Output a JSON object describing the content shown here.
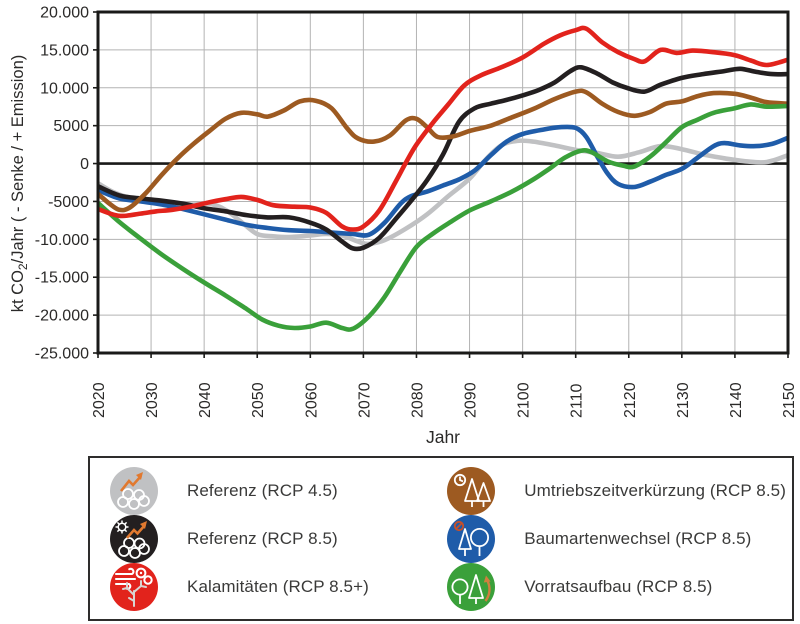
{
  "figure": {
    "xlabel": "Jahr"
  },
  "chart_data": {
    "type": "line",
    "title": "",
    "xlabel": "Jahr",
    "ylabel": "kt CO2/Jahr ( - Senke / + Emission)",
    "ylabel_parts": {
      "pre": "kt CO",
      "sub": "2",
      "post": "/Jahr ( - Senke / + Emission)"
    },
    "xlim": [
      2020,
      2150
    ],
    "ylim": [
      -25000,
      20000
    ],
    "grid": true,
    "legend_position": "bottom",
    "x_ticks": [
      2020,
      2030,
      2040,
      2050,
      2060,
      2070,
      2080,
      2090,
      2100,
      2110,
      2120,
      2130,
      2140,
      2150
    ],
    "y_ticks": [
      {
        "value": 20000,
        "label": "20.000"
      },
      {
        "value": 15000,
        "label": "15.000"
      },
      {
        "value": 10000,
        "label": "10.000"
      },
      {
        "value": 5000,
        "label": "5000"
      },
      {
        "value": 0,
        "label": "0"
      },
      {
        "value": -5000,
        "label": "-5000"
      },
      {
        "value": -10000,
        "label": "-10.000"
      },
      {
        "value": -15000,
        "label": "-15.000"
      },
      {
        "value": -20000,
        "label": "-20.000"
      },
      {
        "value": -25000,
        "label": "-25.000"
      }
    ],
    "zero_line_color": "#1a1a18",
    "grid_color": "#b3b3b3",
    "accent_orange": "#e1792f",
    "series": [
      {
        "name": "Referenz (RCP 4.5)",
        "color": "#c0c1c3",
        "icon": "logs-arrow-icon",
        "points": [
          [
            2020,
            -2600
          ],
          [
            2023,
            -3800
          ],
          [
            2026,
            -4500
          ],
          [
            2030,
            -4900
          ],
          [
            2034,
            -5200
          ],
          [
            2038,
            -5400
          ],
          [
            2041,
            -5300
          ],
          [
            2044,
            -6100
          ],
          [
            2047,
            -7700
          ],
          [
            2050,
            -9300
          ],
          [
            2053,
            -9600
          ],
          [
            2056,
            -9700
          ],
          [
            2060,
            -9500
          ],
          [
            2063,
            -9300
          ],
          [
            2066,
            -9500
          ],
          [
            2069,
            -10300
          ],
          [
            2071,
            -10600
          ],
          [
            2074,
            -10100
          ],
          [
            2078,
            -8600
          ],
          [
            2082,
            -6700
          ],
          [
            2086,
            -4300
          ],
          [
            2090,
            -2000
          ],
          [
            2093,
            500
          ],
          [
            2096,
            2400
          ],
          [
            2099,
            3000
          ],
          [
            2102,
            2900
          ],
          [
            2106,
            2400
          ],
          [
            2110,
            1800
          ],
          [
            2114,
            1400
          ],
          [
            2118,
            900
          ],
          [
            2122,
            1500
          ],
          [
            2126,
            2300
          ],
          [
            2130,
            1900
          ],
          [
            2134,
            1200
          ],
          [
            2138,
            700
          ],
          [
            2142,
            300
          ],
          [
            2146,
            200
          ],
          [
            2150,
            1100
          ]
        ]
      },
      {
        "name": "Referenz (RCP 8.5)",
        "color": "#231f20",
        "icon": "sun-logs-arrow-icon",
        "points": [
          [
            2020,
            -3000
          ],
          [
            2024,
            -4200
          ],
          [
            2028,
            -4600
          ],
          [
            2032,
            -4900
          ],
          [
            2036,
            -5300
          ],
          [
            2040,
            -5900
          ],
          [
            2044,
            -6300
          ],
          [
            2048,
            -6800
          ],
          [
            2052,
            -7100
          ],
          [
            2056,
            -7100
          ],
          [
            2060,
            -7800
          ],
          [
            2063,
            -8700
          ],
          [
            2066,
            -10300
          ],
          [
            2068,
            -11200
          ],
          [
            2070,
            -11100
          ],
          [
            2073,
            -9800
          ],
          [
            2076,
            -7400
          ],
          [
            2079,
            -4900
          ],
          [
            2082,
            -2200
          ],
          [
            2085,
            1200
          ],
          [
            2088,
            5500
          ],
          [
            2091,
            7300
          ],
          [
            2094,
            7900
          ],
          [
            2097,
            8400
          ],
          [
            2100,
            9000
          ],
          [
            2103,
            9700
          ],
          [
            2106,
            10700
          ],
          [
            2109,
            12200
          ],
          [
            2111,
            12700
          ],
          [
            2114,
            11900
          ],
          [
            2117,
            10700
          ],
          [
            2120,
            9900
          ],
          [
            2123,
            9500
          ],
          [
            2126,
            10400
          ],
          [
            2130,
            11300
          ],
          [
            2134,
            11800
          ],
          [
            2138,
            12200
          ],
          [
            2141,
            12500
          ],
          [
            2144,
            12100
          ],
          [
            2147,
            11800
          ],
          [
            2150,
            11800
          ]
        ]
      },
      {
        "name": "Kalamitäten (RCP 8.5+)",
        "color": "#e2231c",
        "icon": "storm-deadwood-icon",
        "points": [
          [
            2020,
            -6000
          ],
          [
            2024,
            -6900
          ],
          [
            2028,
            -6600
          ],
          [
            2031,
            -6300
          ],
          [
            2034,
            -6100
          ],
          [
            2038,
            -5600
          ],
          [
            2041,
            -5100
          ],
          [
            2044,
            -4700
          ],
          [
            2047,
            -4400
          ],
          [
            2050,
            -4800
          ],
          [
            2053,
            -5500
          ],
          [
            2057,
            -5700
          ],
          [
            2060,
            -5800
          ],
          [
            2063,
            -6500
          ],
          [
            2066,
            -8300
          ],
          [
            2068,
            -8700
          ],
          [
            2070,
            -8300
          ],
          [
            2073,
            -6200
          ],
          [
            2076,
            -2500
          ],
          [
            2078,
            100
          ],
          [
            2080,
            2500
          ],
          [
            2083,
            5300
          ],
          [
            2086,
            7800
          ],
          [
            2089,
            10300
          ],
          [
            2092,
            11600
          ],
          [
            2096,
            12700
          ],
          [
            2100,
            14000
          ],
          [
            2104,
            15800
          ],
          [
            2107,
            16900
          ],
          [
            2110,
            17600
          ],
          [
            2112,
            17800
          ],
          [
            2115,
            16000
          ],
          [
            2118,
            14700
          ],
          [
            2121,
            13800
          ],
          [
            2123,
            13500
          ],
          [
            2126,
            15000
          ],
          [
            2129,
            14600
          ],
          [
            2132,
            14900
          ],
          [
            2136,
            14700
          ],
          [
            2140,
            14300
          ],
          [
            2143,
            13600
          ],
          [
            2146,
            13000
          ],
          [
            2150,
            13700
          ]
        ]
      },
      {
        "name": "Umtriebszeitverkürzung (RCP 8.5)",
        "color": "#9d5a21",
        "icon": "clock-trees-icon",
        "points": [
          [
            2020,
            -4000
          ],
          [
            2022,
            -5200
          ],
          [
            2024,
            -6100
          ],
          [
            2026,
            -5800
          ],
          [
            2029,
            -3900
          ],
          [
            2032,
            -1500
          ],
          [
            2035,
            700
          ],
          [
            2038,
            2600
          ],
          [
            2041,
            4300
          ],
          [
            2044,
            5900
          ],
          [
            2047,
            6700
          ],
          [
            2050,
            6500
          ],
          [
            2052,
            6200
          ],
          [
            2055,
            7000
          ],
          [
            2058,
            8200
          ],
          [
            2061,
            8300
          ],
          [
            2064,
            7300
          ],
          [
            2067,
            4600
          ],
          [
            2069,
            3300
          ],
          [
            2072,
            2900
          ],
          [
            2075,
            3700
          ],
          [
            2078,
            5700
          ],
          [
            2080,
            5900
          ],
          [
            2082,
            4800
          ],
          [
            2084,
            3500
          ],
          [
            2087,
            3600
          ],
          [
            2090,
            4300
          ],
          [
            2094,
            5000
          ],
          [
            2098,
            6100
          ],
          [
            2102,
            7200
          ],
          [
            2106,
            8500
          ],
          [
            2110,
            9500
          ],
          [
            2112,
            9400
          ],
          [
            2115,
            7900
          ],
          [
            2118,
            6800
          ],
          [
            2121,
            6300
          ],
          [
            2124,
            6800
          ],
          [
            2127,
            7900
          ],
          [
            2130,
            8200
          ],
          [
            2133,
            8900
          ],
          [
            2136,
            9300
          ],
          [
            2140,
            9200
          ],
          [
            2143,
            8700
          ],
          [
            2146,
            8100
          ],
          [
            2150,
            7900
          ]
        ]
      },
      {
        "name": "Baumartenwechsel (RCP 8.5)",
        "color": "#1f5ca9",
        "icon": "tree-species-change-icon",
        "points": [
          [
            2020,
            -3500
          ],
          [
            2024,
            -4600
          ],
          [
            2028,
            -5000
          ],
          [
            2032,
            -5400
          ],
          [
            2036,
            -6000
          ],
          [
            2040,
            -6700
          ],
          [
            2044,
            -7400
          ],
          [
            2048,
            -8100
          ],
          [
            2052,
            -8500
          ],
          [
            2056,
            -8800
          ],
          [
            2060,
            -8900
          ],
          [
            2064,
            -9100
          ],
          [
            2068,
            -9300
          ],
          [
            2071,
            -9400
          ],
          [
            2074,
            -7800
          ],
          [
            2077,
            -5300
          ],
          [
            2079,
            -4300
          ],
          [
            2082,
            -3700
          ],
          [
            2085,
            -2900
          ],
          [
            2088,
            -2100
          ],
          [
            2091,
            -900
          ],
          [
            2094,
            1100
          ],
          [
            2097,
            2900
          ],
          [
            2100,
            3900
          ],
          [
            2104,
            4500
          ],
          [
            2107,
            4800
          ],
          [
            2110,
            4700
          ],
          [
            2112,
            3500
          ],
          [
            2114,
            1000
          ],
          [
            2116,
            -1300
          ],
          [
            2118,
            -2700
          ],
          [
            2121,
            -3100
          ],
          [
            2124,
            -2400
          ],
          [
            2127,
            -1500
          ],
          [
            2130,
            -700
          ],
          [
            2133,
            800
          ],
          [
            2136,
            2300
          ],
          [
            2138,
            2700
          ],
          [
            2141,
            2400
          ],
          [
            2144,
            2300
          ],
          [
            2147,
            2600
          ],
          [
            2150,
            3400
          ]
        ]
      },
      {
        "name": "Vorratsaufbau (RCP 8.5)",
        "color": "#3aa03a",
        "icon": "stock-buildup-trees-icon",
        "points": [
          [
            2020,
            -5200
          ],
          [
            2024,
            -7700
          ],
          [
            2028,
            -9900
          ],
          [
            2032,
            -12000
          ],
          [
            2036,
            -13900
          ],
          [
            2040,
            -15700
          ],
          [
            2044,
            -17400
          ],
          [
            2048,
            -19200
          ],
          [
            2051,
            -20600
          ],
          [
            2054,
            -21400
          ],
          [
            2057,
            -21700
          ],
          [
            2060,
            -21500
          ],
          [
            2063,
            -21000
          ],
          [
            2066,
            -21700
          ],
          [
            2068,
            -21800
          ],
          [
            2071,
            -20200
          ],
          [
            2074,
            -17600
          ],
          [
            2077,
            -14200
          ],
          [
            2080,
            -11000
          ],
          [
            2083,
            -9300
          ],
          [
            2086,
            -7900
          ],
          [
            2090,
            -6200
          ],
          [
            2094,
            -5000
          ],
          [
            2098,
            -3700
          ],
          [
            2102,
            -2100
          ],
          [
            2105,
            -700
          ],
          [
            2108,
            800
          ],
          [
            2111,
            1700
          ],
          [
            2113,
            1500
          ],
          [
            2116,
            300
          ],
          [
            2119,
            -300
          ],
          [
            2121,
            -400
          ],
          [
            2124,
            900
          ],
          [
            2127,
            2800
          ],
          [
            2130,
            4800
          ],
          [
            2133,
            5800
          ],
          [
            2136,
            6700
          ],
          [
            2140,
            7300
          ],
          [
            2143,
            7800
          ],
          [
            2146,
            7500
          ],
          [
            2150,
            7600
          ]
        ]
      }
    ],
    "draw_order": [
      0,
      4,
      1,
      3,
      5,
      2
    ],
    "legend_columns": [
      [
        0,
        1,
        2
      ],
      [
        3,
        4,
        5
      ]
    ]
  }
}
